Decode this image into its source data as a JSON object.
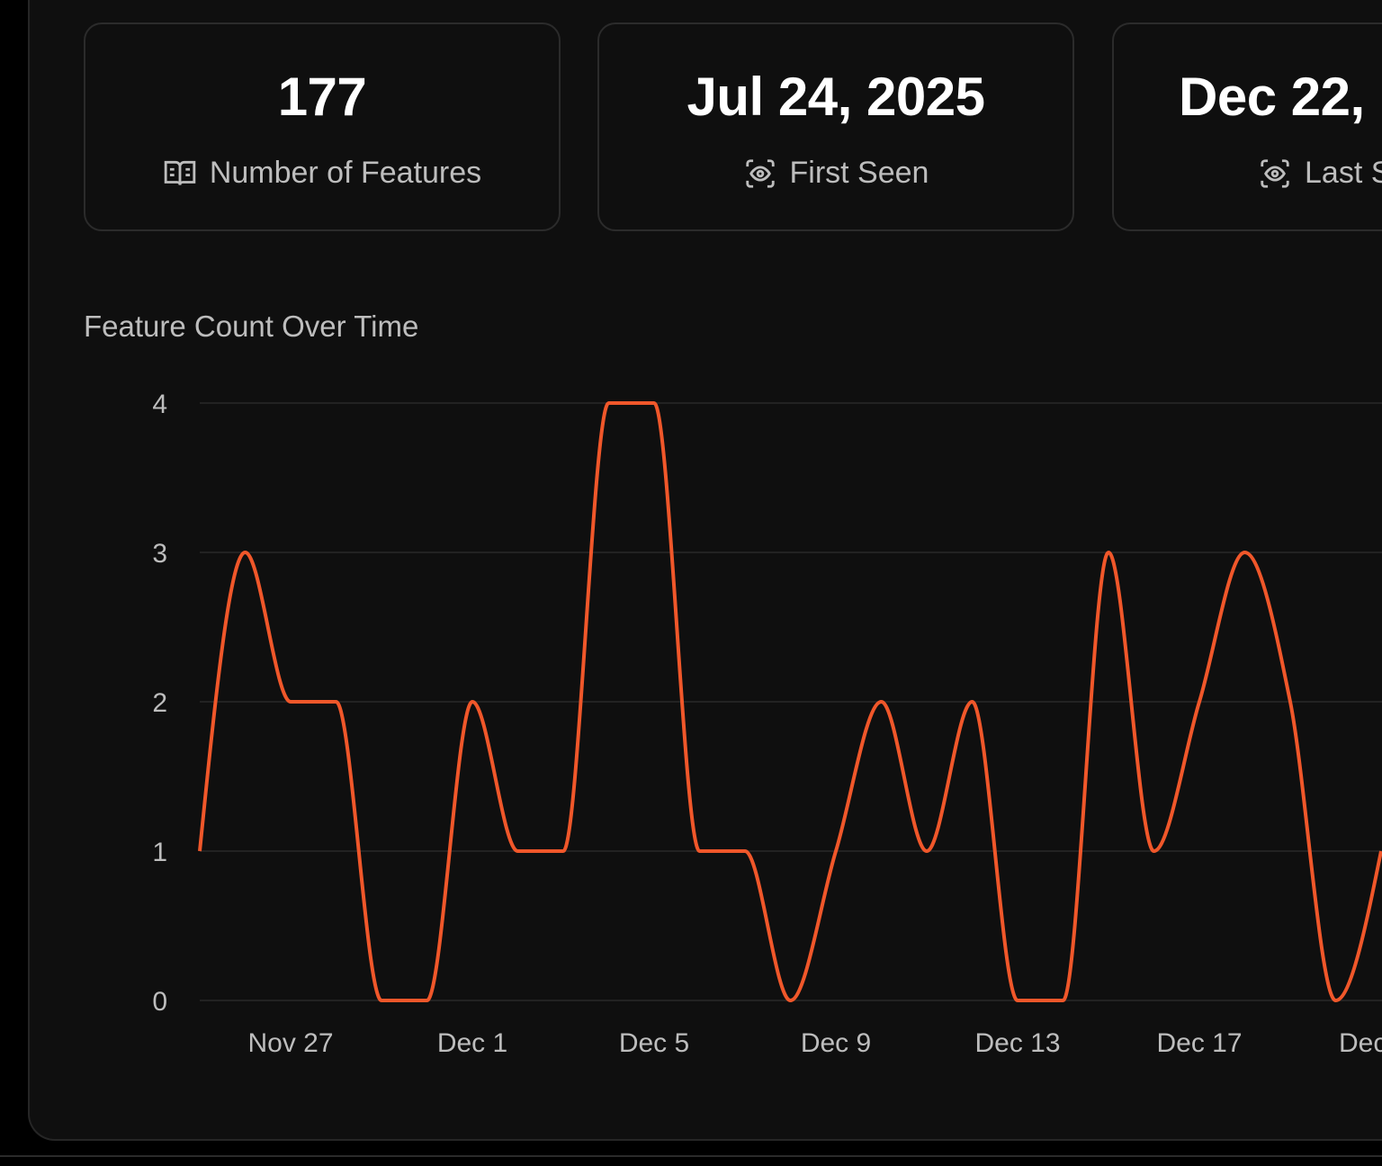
{
  "stats": [
    {
      "value": "177",
      "label": "Number of Features",
      "icon": "book-icon"
    },
    {
      "value": "Jul 24, 2025",
      "label": "First Seen",
      "icon": "eye-scan-icon"
    },
    {
      "value": "Dec 22,",
      "label": "Last S",
      "icon": "eye-scan-icon"
    }
  ],
  "chart_title": "Feature Count Over Time",
  "chart_data": {
    "type": "line",
    "title": "Feature Count Over Time",
    "x": [
      "Nov 25",
      "Nov 26",
      "Nov 27",
      "Nov 28",
      "Nov 29",
      "Nov 30",
      "Dec 1",
      "Dec 2",
      "Dec 3",
      "Dec 4",
      "Dec 5",
      "Dec 6",
      "Dec 7",
      "Dec 8",
      "Dec 9",
      "Dec 10",
      "Dec 11",
      "Dec 12",
      "Dec 13",
      "Dec 14",
      "Dec 15",
      "Dec 16",
      "Dec 17",
      "Dec 18",
      "Dec 19",
      "Dec 20",
      "Dec 21"
    ],
    "values": [
      1,
      3,
      2,
      2,
      0,
      0,
      2,
      1,
      1,
      4,
      4,
      1,
      1,
      0,
      1,
      2,
      1,
      2,
      0,
      0,
      3,
      1,
      2,
      3,
      2,
      0,
      1
    ],
    "x_tick_labels": [
      "Nov 27",
      "Dec 1",
      "Dec 5",
      "Dec 9",
      "Dec 13",
      "Dec 17",
      "Dec"
    ],
    "y_ticks": [
      "0",
      "1",
      "2",
      "3",
      "4"
    ],
    "ylim": [
      0,
      4
    ],
    "grid": "horizontal",
    "interpolation": "monotone",
    "line_color": "#f0572a"
  },
  "colors": {
    "background": "#0f0f0f",
    "accent": "#f0572a"
  }
}
